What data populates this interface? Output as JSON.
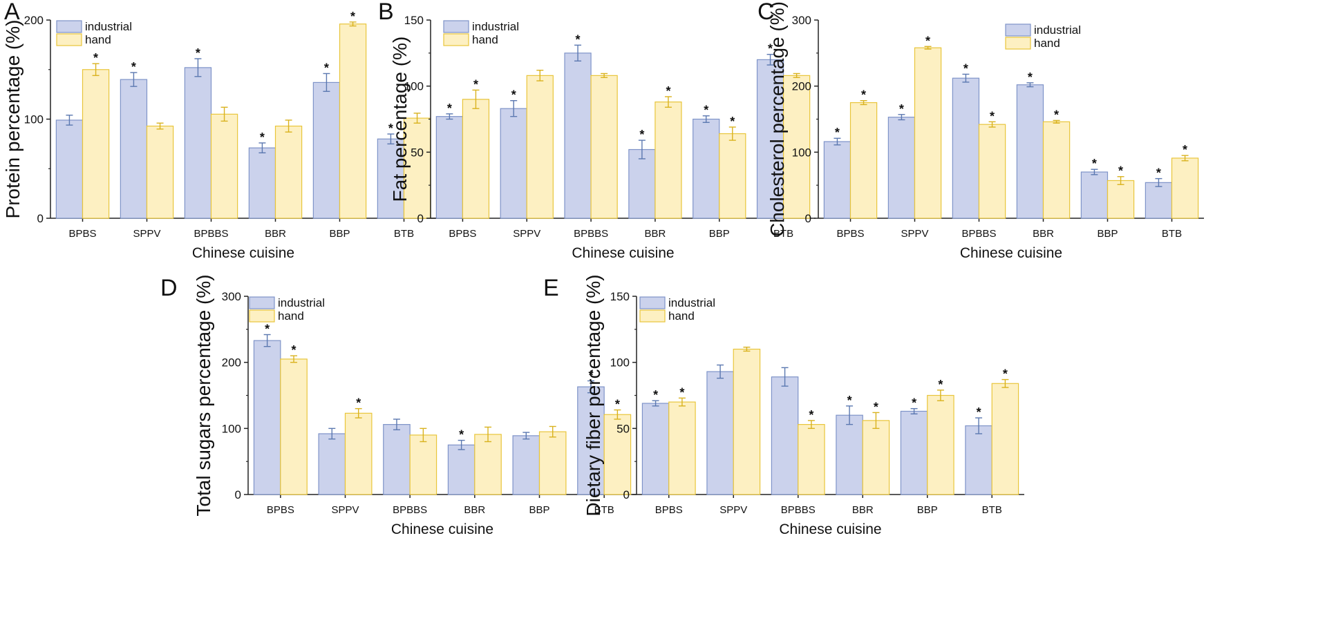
{
  "colors": {
    "industrial_fill": "#CBD2EC",
    "industrial_stroke": "#7E93C8",
    "industrial_err": "#5B78B0",
    "hand_fill": "#FDF0C2",
    "hand_stroke": "#E8C53A",
    "hand_err": "#D9B21E",
    "axis": "#222222"
  },
  "legend": {
    "industrial": "industrial",
    "hand": "hand"
  },
  "chart_data": [
    {
      "type": "bar",
      "panel_label": "A",
      "xlabel": "Chinese cuisine",
      "ylabel": "Protein percentage (%)",
      "ylim": [
        0,
        200
      ],
      "yticks": [
        0,
        100,
        200
      ],
      "legend_position": "top-left",
      "categories": [
        "BPBS",
        "SPPV",
        "BPBBS",
        "BBR",
        "BBP",
        "BTB"
      ],
      "series": [
        {
          "name": "industrial",
          "values": [
            99,
            140,
            152,
            71,
            137,
            80
          ],
          "errors": [
            5,
            7,
            9,
            5,
            9,
            5
          ],
          "significant": [
            false,
            true,
            true,
            true,
            true,
            true
          ]
        },
        {
          "name": "hand",
          "values": [
            150,
            93,
            105,
            93,
            196,
            101
          ],
          "errors": [
            6,
            3,
            7,
            6,
            2,
            5
          ],
          "significant": [
            true,
            false,
            false,
            false,
            true,
            false
          ]
        }
      ]
    },
    {
      "type": "bar",
      "panel_label": "B",
      "xlabel": "Chinese cuisine",
      "ylabel": "Fat percentage (%)",
      "ylim": [
        0,
        150
      ],
      "yticks": [
        0,
        50,
        100,
        150
      ],
      "legend_position": "top-left",
      "categories": [
        "BPBS",
        "SPPV",
        "BPBBS",
        "BBR",
        "BBP",
        "BTB"
      ],
      "series": [
        {
          "name": "industrial",
          "values": [
            77,
            83,
            125,
            52,
            75,
            120
          ],
          "errors": [
            2,
            6,
            6,
            7,
            2.5,
            4
          ],
          "significant": [
            true,
            true,
            true,
            true,
            true,
            true
          ]
        },
        {
          "name": "hand",
          "values": [
            90,
            108,
            108,
            88,
            64,
            108
          ],
          "errors": [
            7,
            4,
            1.5,
            4,
            5,
            1.5
          ],
          "significant": [
            true,
            false,
            false,
            true,
            true,
            false
          ]
        }
      ]
    },
    {
      "type": "bar",
      "panel_label": "C",
      "xlabel": "Chinese cuisine",
      "ylabel": "Cholesterol percentage (%)",
      "ylim": [
        0,
        300
      ],
      "yticks": [
        0,
        100,
        200,
        300
      ],
      "legend_position": "top-right",
      "categories": [
        "BPBS",
        "SPPV",
        "BPBBS",
        "BBR",
        "BBP",
        "BTB"
      ],
      "series": [
        {
          "name": "industrial",
          "values": [
            116,
            153,
            212,
            202,
            70,
            54
          ],
          "errors": [
            5,
            4,
            6,
            3,
            4,
            6
          ],
          "significant": [
            true,
            true,
            true,
            true,
            true,
            true
          ]
        },
        {
          "name": "hand",
          "values": [
            175,
            258,
            142,
            146,
            57,
            91
          ],
          "errors": [
            3,
            2,
            4,
            2,
            6,
            4
          ],
          "significant": [
            true,
            true,
            true,
            true,
            true,
            true
          ]
        }
      ]
    },
    {
      "type": "bar",
      "panel_label": "D",
      "xlabel": "Chinese cuisine",
      "ylabel": "Total sugars percentage (%)",
      "ylim": [
        0,
        300
      ],
      "yticks": [
        0,
        100,
        200,
        300
      ],
      "legend_position": "top-left",
      "categories": [
        "BPBS",
        "SPPV",
        "BPBBS",
        "BBR",
        "BBP",
        "BTB"
      ],
      "series": [
        {
          "name": "industrial",
          "values": [
            233,
            92,
            106,
            75,
            89,
            163
          ],
          "errors": [
            9,
            8,
            8,
            7,
            5,
            9
          ],
          "significant": [
            true,
            false,
            false,
            true,
            false,
            true
          ]
        },
        {
          "name": "hand",
          "values": [
            205,
            123,
            90,
            91,
            95,
            121
          ],
          "errors": [
            5,
            7,
            10,
            11,
            8,
            7
          ],
          "significant": [
            true,
            true,
            false,
            false,
            false,
            true
          ]
        }
      ]
    },
    {
      "type": "bar",
      "panel_label": "E",
      "xlabel": "Chinese cuisine",
      "ylabel": "Dietary fiber percentage (%)",
      "ylim": [
        0,
        150
      ],
      "yticks": [
        0,
        50,
        100,
        150
      ],
      "legend_position": "top-left",
      "categories": [
        "BPBS",
        "SPPV",
        "BPBBS",
        "BBR",
        "BBP",
        "BTB"
      ],
      "series": [
        {
          "name": "industrial",
          "values": [
            69,
            93,
            89,
            60,
            63,
            52
          ],
          "errors": [
            2,
            5,
            7,
            7,
            2,
            6
          ],
          "significant": [
            true,
            false,
            false,
            true,
            true,
            true
          ]
        },
        {
          "name": "hand",
          "values": [
            70,
            110,
            53,
            56,
            75,
            84
          ],
          "errors": [
            3,
            1.5,
            3,
            6,
            4,
            3
          ],
          "significant": [
            true,
            false,
            true,
            true,
            true,
            true
          ]
        }
      ]
    }
  ]
}
